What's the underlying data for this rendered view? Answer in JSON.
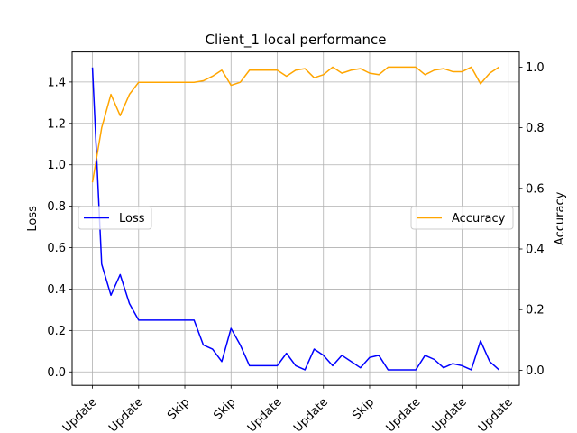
{
  "chart_data": {
    "type": "line",
    "title": "Client_1 local performance",
    "xlabel": "",
    "x_tick_labels": [
      "Update",
      "Update",
      "Skip",
      "Skip",
      "Update",
      "Update",
      "Skip",
      "Update",
      "Update",
      "Update"
    ],
    "x_tick_positions": [
      0,
      5,
      10,
      15,
      20,
      25,
      30,
      35,
      40,
      45
    ],
    "xlim": [
      -2.2,
      46.2
    ],
    "y_left": {
      "label": "Loss",
      "ylim": [
        -0.065,
        1.545
      ],
      "ticks": [
        0.0,
        0.2,
        0.4,
        0.6,
        0.8,
        1.0,
        1.2,
        1.4
      ]
    },
    "y_right": {
      "label": "Accuracy",
      "ylim": [
        -0.05,
        1.05
      ],
      "ticks": [
        0.0,
        0.2,
        0.4,
        0.6,
        0.8,
        1.0
      ]
    },
    "grid": true,
    "legends": [
      {
        "placement": "center-left",
        "entries": [
          "Loss"
        ]
      },
      {
        "placement": "center-right",
        "entries": [
          "Accuracy"
        ]
      }
    ],
    "x": [
      0,
      1,
      2,
      3,
      4,
      5,
      6,
      7,
      8,
      9,
      10,
      11,
      12,
      13,
      14,
      15,
      16,
      17,
      18,
      19,
      20,
      21,
      22,
      23,
      24,
      25,
      26,
      27,
      28,
      29,
      30,
      31,
      32,
      33,
      34,
      35,
      36,
      37,
      38,
      39,
      40,
      41,
      42,
      43,
      44,
      45
    ],
    "series": [
      {
        "name": "Loss",
        "axis": "left",
        "color": "#0000ff",
        "values": [
          1.47,
          0.52,
          0.37,
          0.47,
          0.33,
          0.25,
          0.25,
          0.25,
          0.25,
          0.25,
          0.25,
          0.25,
          0.13,
          0.11,
          0.05,
          0.21,
          0.13,
          0.03,
          0.03,
          0.03,
          0.03,
          0.09,
          0.03,
          0.01,
          0.11,
          0.08,
          0.03,
          0.08,
          0.05,
          0.02,
          0.07,
          0.08,
          0.01,
          0.01,
          0.01,
          0.01,
          0.08,
          0.06,
          0.02,
          0.04,
          0.03,
          0.01,
          0.15,
          0.05,
          0.01,
          null
        ]
      },
      {
        "name": "Accuracy",
        "axis": "right",
        "color": "#ffa500",
        "values": [
          0.62,
          0.8,
          0.91,
          0.84,
          0.91,
          0.95,
          0.95,
          0.95,
          0.95,
          0.95,
          0.95,
          0.95,
          0.955,
          0.97,
          0.99,
          0.94,
          0.95,
          0.99,
          0.99,
          0.99,
          0.99,
          0.97,
          0.99,
          0.995,
          0.965,
          0.975,
          1.0,
          0.98,
          0.99,
          0.995,
          0.98,
          0.975,
          1.0,
          1.0,
          1.0,
          1.0,
          0.975,
          0.99,
          0.995,
          0.985,
          0.985,
          1.0,
          0.945,
          0.98,
          1.0,
          null
        ]
      }
    ]
  }
}
